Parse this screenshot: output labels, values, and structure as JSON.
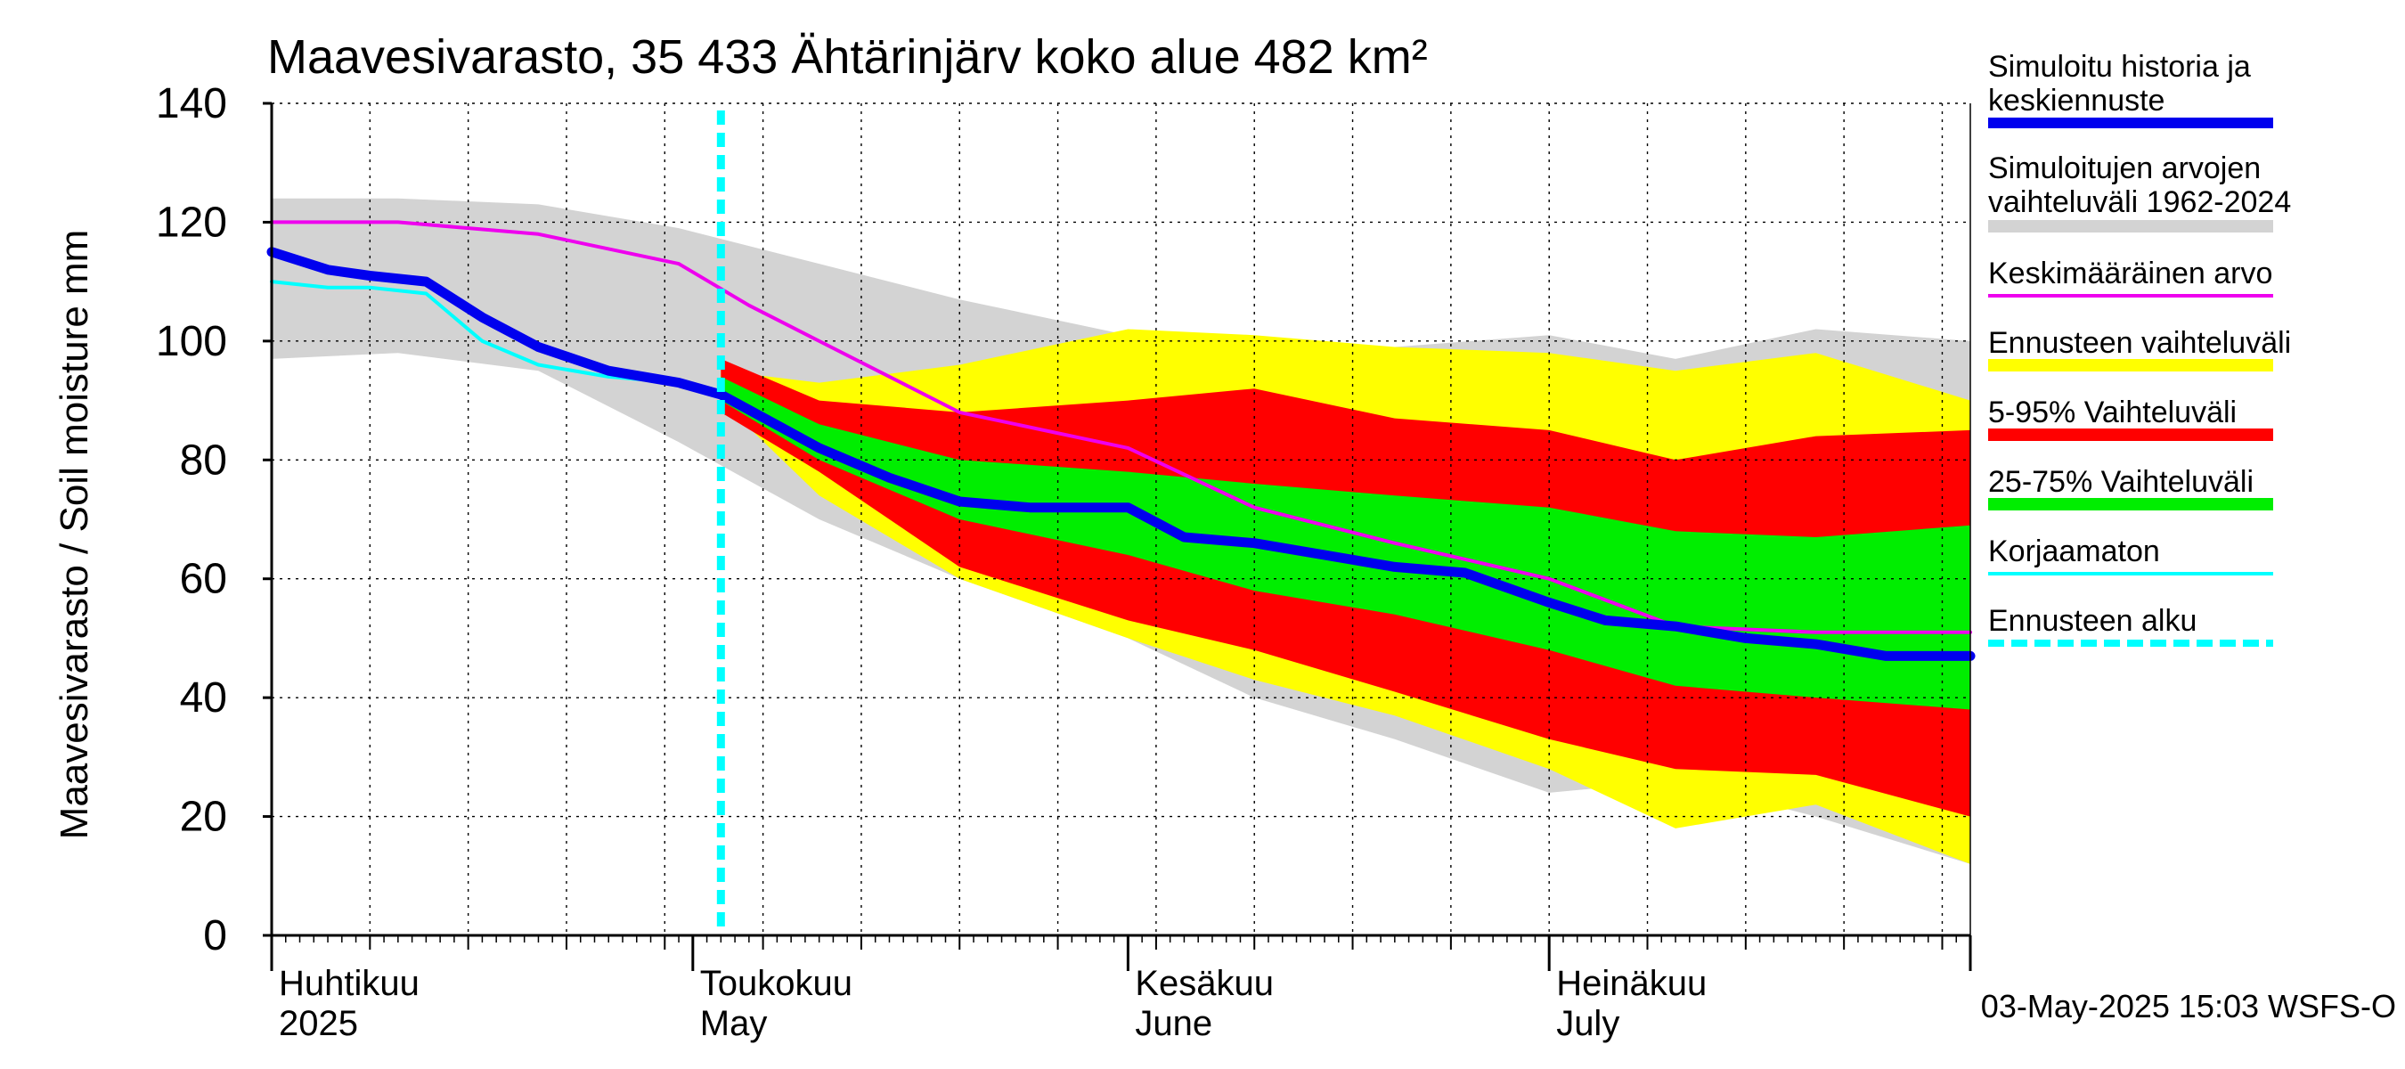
{
  "chart_data": {
    "type": "area",
    "title": "Maavesivarasto, 35 433 Ähtärinjärv koko alue 482 km²",
    "ylabel": "Maavesivarasto / Soil moisture   mm",
    "xlabel": "",
    "ylim": [
      0,
      140
    ],
    "yticks": [
      0,
      20,
      40,
      60,
      80,
      100,
      120,
      140
    ],
    "xlim": [
      "2025-04-01",
      "2025-07-31"
    ],
    "grid": true,
    "legend_position": "right",
    "forecast_start": "2025-05-03",
    "timestamp": "03-May-2025 15:03 WSFS-O",
    "month_labels": [
      {
        "date": "2025-04-01",
        "fi": "Huhtikuu",
        "en": "2025"
      },
      {
        "date": "2025-05-01",
        "fi": "Toukokuu",
        "en": "May"
      },
      {
        "date": "2025-06-01",
        "fi": "Kesäkuu",
        "en": "June"
      },
      {
        "date": "2025-07-01",
        "fi": "Heinäkuu",
        "en": "July"
      }
    ],
    "legend": [
      {
        "key": "sim",
        "label": "Simuloitu historia ja keskiennuste",
        "color": "#0000ee"
      },
      {
        "key": "hist_range",
        "label": "Simuloitujen arvojen vaihteluväli 1962-2024",
        "color": "#d3d3d3"
      },
      {
        "key": "mean",
        "label": "Keskimääräinen arvo",
        "color": "#ee00ee"
      },
      {
        "key": "fc_range",
        "label": "Ennusteen vaihteluväli",
        "color": "#ffff00"
      },
      {
        "key": "p5_95",
        "label": "5-95% Vaihteluväli",
        "color": "#ff0000"
      },
      {
        "key": "p25_75",
        "label": "25-75% Vaihteluväli",
        "color": "#00ee00"
      },
      {
        "key": "uncorrected",
        "label": "Korjaamaton",
        "color": "#00ffff"
      },
      {
        "key": "fc_start",
        "label": "Ennusteen alku",
        "color": "#00ffff"
      }
    ],
    "series": [
      {
        "key": "hist_range",
        "x": [
          "2025-04-01",
          "2025-04-10",
          "2025-04-20",
          "2025-04-30",
          "2025-05-10",
          "2025-05-20",
          "2025-06-01",
          "2025-06-10",
          "2025-06-20",
          "2025-07-01",
          "2025-07-10",
          "2025-07-20",
          "2025-07-31"
        ],
        "upper": [
          124,
          124,
          123,
          119,
          113,
          107,
          101,
          98,
          99,
          101,
          97,
          102,
          100
        ],
        "lower": [
          97,
          98,
          95,
          83,
          70,
          60,
          50,
          40,
          33,
          24,
          26,
          20,
          12
        ]
      },
      {
        "key": "fc_range",
        "x": [
          "2025-05-03",
          "2025-05-10",
          "2025-05-20",
          "2025-06-01",
          "2025-06-10",
          "2025-06-20",
          "2025-07-01",
          "2025-07-10",
          "2025-07-20",
          "2025-07-31"
        ],
        "upper": [
          95,
          93,
          96,
          102,
          101,
          99,
          98,
          95,
          98,
          90
        ],
        "lower": [
          90,
          74,
          60,
          50,
          43,
          37,
          28,
          18,
          22,
          12
        ]
      },
      {
        "key": "p5_95",
        "x": [
          "2025-05-03",
          "2025-05-10",
          "2025-05-20",
          "2025-06-01",
          "2025-06-10",
          "2025-06-20",
          "2025-07-01",
          "2025-07-10",
          "2025-07-20",
          "2025-07-31"
        ],
        "upper": [
          97,
          90,
          88,
          90,
          92,
          87,
          85,
          80,
          84,
          85
        ],
        "lower": [
          88,
          78,
          62,
          53,
          48,
          41,
          33,
          28,
          27,
          20
        ]
      },
      {
        "key": "p25_75",
        "x": [
          "2025-05-03",
          "2025-05-10",
          "2025-05-20",
          "2025-06-01",
          "2025-06-10",
          "2025-06-20",
          "2025-07-01",
          "2025-07-10",
          "2025-07-20",
          "2025-07-31"
        ],
        "upper": [
          94,
          86,
          80,
          78,
          76,
          74,
          72,
          68,
          67,
          69
        ],
        "lower": [
          90,
          80,
          70,
          64,
          58,
          54,
          48,
          42,
          40,
          38
        ]
      },
      {
        "key": "mean",
        "x": [
          "2025-04-01",
          "2025-04-10",
          "2025-04-20",
          "2025-04-30",
          "2025-05-05",
          "2025-05-10",
          "2025-05-20",
          "2025-06-01",
          "2025-06-10",
          "2025-06-20",
          "2025-07-01",
          "2025-07-10",
          "2025-07-20",
          "2025-07-31"
        ],
        "y": [
          120,
          120,
          118,
          113,
          106,
          100,
          88,
          82,
          72,
          66,
          60,
          52,
          51,
          51
        ]
      },
      {
        "key": "uncorrected",
        "x": [
          "2025-04-01",
          "2025-04-05",
          "2025-04-08",
          "2025-04-12",
          "2025-04-16",
          "2025-04-20",
          "2025-04-25",
          "2025-04-30"
        ],
        "y": [
          110,
          109,
          109,
          108,
          100,
          96,
          94,
          93
        ]
      },
      {
        "key": "sim",
        "x": [
          "2025-04-01",
          "2025-04-05",
          "2025-04-08",
          "2025-04-12",
          "2025-04-16",
          "2025-04-20",
          "2025-04-25",
          "2025-04-30",
          "2025-05-03",
          "2025-05-10",
          "2025-05-15",
          "2025-05-20",
          "2025-05-25",
          "2025-06-01",
          "2025-06-05",
          "2025-06-10",
          "2025-06-15",
          "2025-06-20",
          "2025-06-25",
          "2025-07-01",
          "2025-07-05",
          "2025-07-10",
          "2025-07-15",
          "2025-07-20",
          "2025-07-25",
          "2025-07-31"
        ],
        "y": [
          115,
          112,
          111,
          110,
          104,
          99,
          95,
          93,
          91,
          82,
          77,
          73,
          72,
          72,
          67,
          66,
          64,
          62,
          61,
          56,
          53,
          52,
          50,
          49,
          47,
          47
        ]
      }
    ]
  }
}
